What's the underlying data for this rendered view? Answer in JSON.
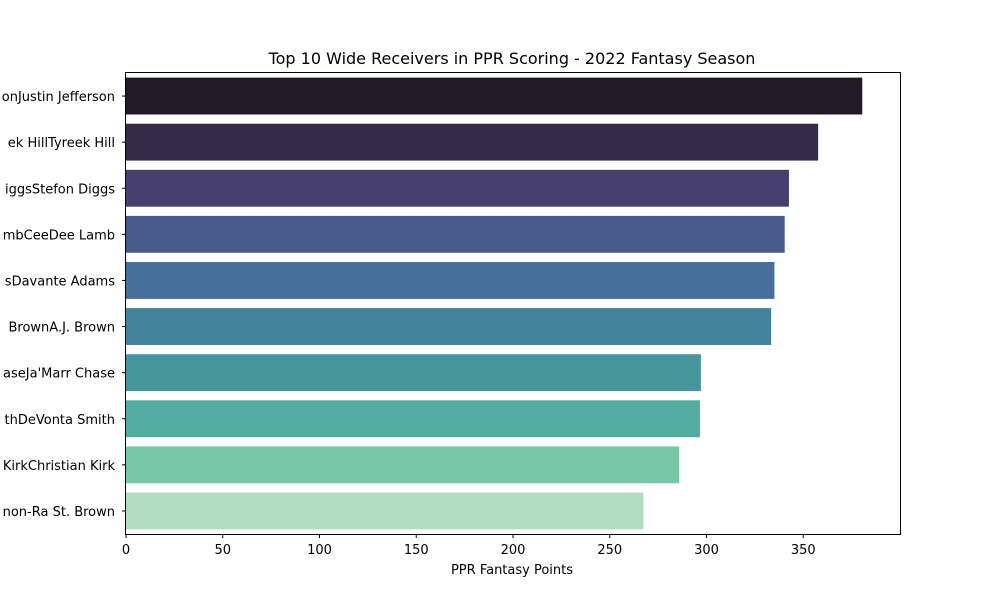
{
  "chart_data": {
    "type": "bar",
    "orientation": "horizontal",
    "title": "Top 10 Wide Receivers in PPR Scoring - 2022 Fantasy Season",
    "xlabel": "PPR Fantasy Points",
    "ylabel": "",
    "xlim": [
      0,
      400
    ],
    "xticks": [
      0,
      50,
      100,
      150,
      200,
      250,
      300,
      350
    ],
    "grid": false,
    "categories": [
      "Justin JeffersonJustin Jefferson",
      "Tyreek HillTyreek Hill",
      "Stefon DiggsStefon Diggs",
      "CeeDee LambCeeDee Lamb",
      "Davante AdamsDavante Adams",
      "A.J. BrownA.J. Brown",
      "Ja'Marr ChaseJa'Marr Chase",
      "DeVonta SmithDeVonta Smith",
      "Christian KirkChristian Kirk",
      "Amon-Ra St. BrownAmon-Ra St. Brown"
    ],
    "tick_labels_visible": [
      "onJustin Jefferson",
      "ek HillTyreek Hill",
      "iggsStefon Diggs",
      "mbCeeDee Lamb",
      "sDavante Adams",
      " BrownA.J. Brown",
      "aseJa'Marr Chase",
      "thDeVonta Smith",
      "KirkChristian Kirk",
      "non-Ra St. Brown"
    ],
    "values": [
      380.5,
      357.7,
      342.6,
      340.4,
      335.1,
      333.4,
      297.1,
      296.6,
      285.9,
      267.4
    ],
    "colors": [
      "#221a27",
      "#352a48",
      "#47406f",
      "#485a8c",
      "#46709b",
      "#43849c",
      "#46979d",
      "#53ada1",
      "#78c6a8",
      "#b3ddc2"
    ]
  }
}
